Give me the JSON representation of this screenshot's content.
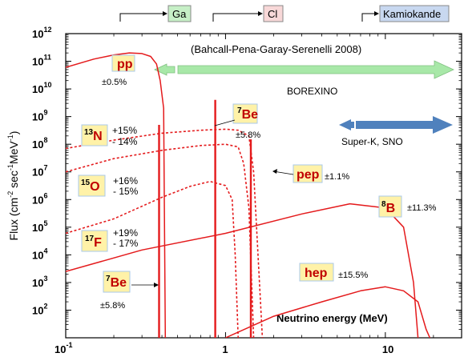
{
  "chart_data": {
    "type": "line",
    "title": "(Bahcall-Pena-Garay-Serenelli 2008)",
    "xlabel": "Neutrino energy (MeV)",
    "ylabel_parts": [
      "Flux (cm",
      "-2",
      " sec",
      "-1",
      "MeV",
      "-1",
      ")"
    ],
    "x_scale": "log",
    "y_scale": "log",
    "xlim": [
      0.1,
      30
    ],
    "ylim": [
      10,
      1000000000000
    ],
    "x_ticks": [
      {
        "value": 0.1,
        "base": "10",
        "exp": "-1"
      },
      {
        "value": 1,
        "base": "1",
        "exp": ""
      },
      {
        "value": 10,
        "base": "10",
        "exp": ""
      }
    ],
    "y_ticks": [
      {
        "value": 1000000000000,
        "base": "10",
        "exp": "12"
      },
      {
        "value": 100000000000,
        "base": "10",
        "exp": "11"
      },
      {
        "value": 10000000000,
        "base": "10",
        "exp": "10"
      },
      {
        "value": 1000000000,
        "base": "10",
        "exp": "9"
      },
      {
        "value": 100000000,
        "base": "10",
        "exp": "8"
      },
      {
        "value": 10000000,
        "base": "10",
        "exp": "7"
      },
      {
        "value": 1000000,
        "base": "10",
        "exp": "6"
      },
      {
        "value": 100000,
        "base": "10",
        "exp": "5"
      },
      {
        "value": 10000,
        "base": "10",
        "exp": "4"
      },
      {
        "value": 1000,
        "base": "10",
        "exp": "3"
      },
      {
        "value": 100,
        "base": "10",
        "exp": "2"
      }
    ],
    "series": [
      {
        "style": "solid",
        "x": [
          0.1,
          0.15,
          0.2,
          0.25,
          0.3,
          0.34,
          0.37,
          0.39,
          0.41,
          0.42
        ],
        "y": [
          60000000000,
          120000000000,
          170000000000,
          200000000000,
          190000000000,
          150000000000,
          80000000000,
          20000000000,
          2000000000,
          10
        ]
      },
      {
        "style": "dotted",
        "x": [
          0.1,
          0.2,
          0.4,
          0.7,
          1.0,
          1.2,
          1.4,
          1.5,
          1.7
        ],
        "y": [
          70000000,
          140000000,
          250000000,
          320000000,
          350000000,
          320000000,
          200000000,
          10000000,
          10
        ]
      },
      {
        "style": "dotted",
        "x": [
          0.1,
          0.2,
          0.4,
          0.7,
          1.0,
          1.2,
          1.3,
          1.4,
          1.5
        ],
        "y": [
          10000000,
          30000000,
          60000000,
          90000000,
          100000000,
          80000000,
          20000000,
          500000,
          10
        ]
      },
      {
        "style": "dotted",
        "x": [
          0.1,
          0.2,
          0.4,
          0.6,
          0.8,
          1.0,
          1.1,
          1.15,
          1.2
        ],
        "y": [
          60000,
          200000,
          1200000,
          3000000,
          4500000,
          3200000,
          1000000,
          10000,
          10
        ]
      },
      {
        "style": "solid",
        "x": [
          0.1,
          0.3,
          1,
          3,
          6,
          10,
          13,
          15,
          16
        ],
        "y": [
          2500,
          15000,
          60000,
          300000,
          700000,
          500000,
          100000,
          1000,
          10
        ]
      },
      {
        "style": "solid",
        "x": [
          1,
          2,
          4,
          7,
          10,
          13,
          16,
          18,
          19
        ],
        "y": [
          10,
          60,
          200,
          500,
          700,
          500,
          200,
          20,
          10
        ]
      },
      {
        "style": "line",
        "x": [
          0.384,
          0.384
        ],
        "y": [
          10,
          500000000
        ]
      },
      {
        "style": "line",
        "x": [
          0.862,
          0.862
        ],
        "y": [
          10,
          4000000000
        ]
      },
      {
        "style": "line",
        "x": [
          1.44,
          1.44
        ],
        "y": [
          10,
          150000000
        ]
      }
    ],
    "labels": [
      {
        "id": "pp",
        "text": "pp",
        "sup": "",
        "uncert": "±0.5%"
      },
      {
        "id": "be7_line",
        "text": "Be",
        "sup": "7",
        "uncert": "±5.8%"
      },
      {
        "id": "n13",
        "text": "N",
        "sup": "13",
        "uncert_up": "+15%",
        "uncert_down": "- 14%"
      },
      {
        "id": "o15",
        "text": "O",
        "sup": "15",
        "uncert_up": "+16%",
        "uncert_down": "- 15%"
      },
      {
        "id": "f17",
        "text": "F",
        "sup": "17",
        "uncert_up": "+19%",
        "uncert_down": "- 17%"
      },
      {
        "id": "pep",
        "text": "pep",
        "sup": "",
        "uncert": "±1.1%"
      },
      {
        "id": "b8",
        "text": "B",
        "sup": "8",
        "uncert": "±11.3%"
      },
      {
        "id": "hep",
        "text": "hep",
        "sup": "",
        "uncert": "±15.5%"
      },
      {
        "id": "be7_low",
        "text": "Be",
        "sup": "7",
        "uncert": "±5.8%"
      }
    ],
    "detectors": {
      "ga": "Ga",
      "cl": "Cl",
      "kamiokande": "Kamiokande",
      "borexino": "BOREXINO",
      "superk": "Super-K, SNO"
    },
    "colors": {
      "curve": "#e41a1c",
      "label_box": "#fff2a8",
      "label_border": "#a8c8e8",
      "ga": "#c6efc6",
      "cl": "#f8d8d8",
      "kamiokande": "#c8d8f0",
      "borexino_arrow": "#a8e8a8",
      "superk_arrow": "#4f81bd"
    }
  }
}
